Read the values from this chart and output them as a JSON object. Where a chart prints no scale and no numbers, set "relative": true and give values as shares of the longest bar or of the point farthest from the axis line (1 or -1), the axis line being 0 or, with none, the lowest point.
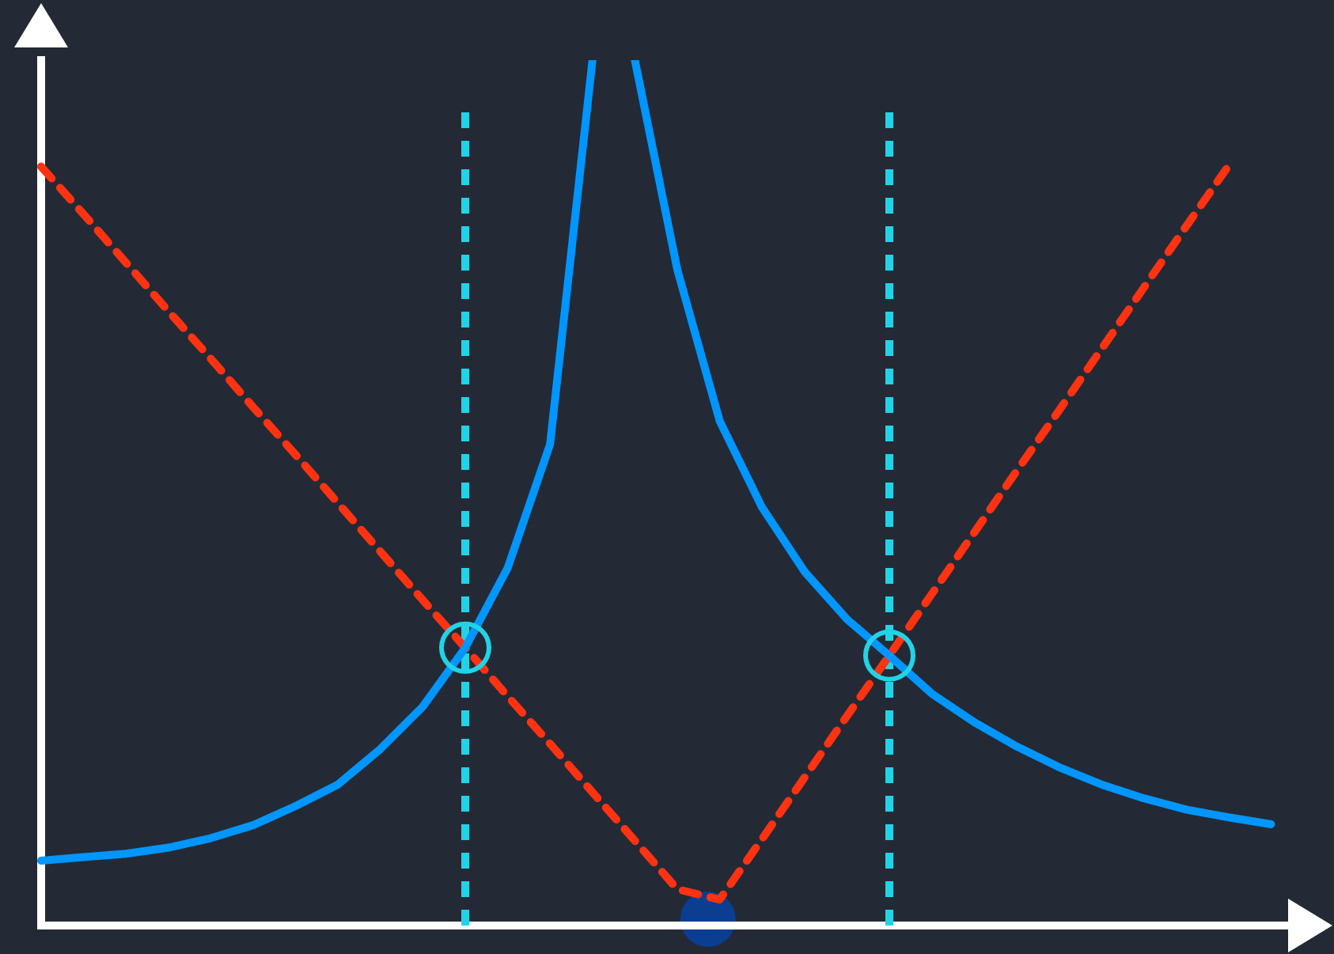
{
  "chart_data": {
    "type": "line",
    "relative": true,
    "grid": false,
    "legend": false,
    "marker": "none",
    "categories": [
      null,
      null,
      null,
      null,
      null,
      null,
      null,
      null,
      null,
      null,
      null,
      null,
      null,
      null,
      null,
      null,
      null,
      null,
      null,
      null,
      null,
      null,
      null,
      null,
      null,
      null,
      null,
      null,
      null,
      null,
      null
    ],
    "series": [
      {
        "color": "#0096ff",
        "line_style": "solid",
        "values": [
          0.075,
          0.079,
          0.083,
          0.09,
          0.101,
          0.116,
          0.138,
          0.163,
          0.204,
          0.253,
          0.321,
          0.413,
          0.556,
          1,
          null,
          null,
          null,
          null,
          null,
          null,
          null,
          null,
          null,
          null,
          null,
          null,
          null,
          null,
          null,
          null,
          null
        ]
      },
      {
        "color": "#0096ff",
        "line_style": "solid",
        "values": [
          null,
          null,
          null,
          null,
          null,
          null,
          null,
          null,
          null,
          null,
          null,
          null,
          null,
          null,
          1,
          0.758,
          0.583,
          0.483,
          0.409,
          0.354,
          0.312,
          0.268,
          0.235,
          0.207,
          0.183,
          0.163,
          0.147,
          0.134,
          0.125,
          0.117,
          null
        ]
      },
      {
        "color": "#ff3311",
        "line_style": "dashed",
        "values": [
          0.877,
          0.822,
          0.766,
          0.71,
          0.655,
          0.599,
          0.544,
          0.488,
          0.432,
          0.376,
          0.321,
          0.265,
          0.21,
          0.154,
          0.098,
          0.042,
          0.03,
          0.1,
          0.171,
          0.242,
          0.312,
          0.383,
          0.454,
          0.525,
          0.595,
          0.666,
          0.737,
          0.808,
          0.878,
          null,
          null
        ]
      }
    ]
  }
}
